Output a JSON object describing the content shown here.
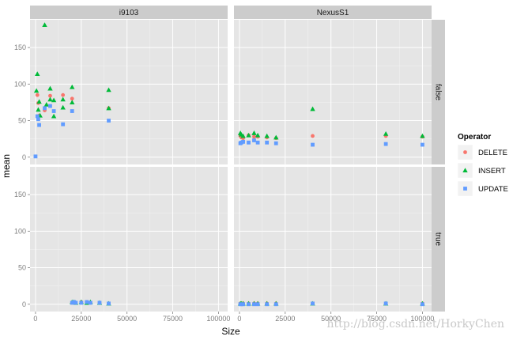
{
  "chart_data": {
    "type": "scatter",
    "title": "",
    "xlabel": "Size",
    "ylabel": "mean",
    "facet_columns": [
      "i9103",
      "NexusS1"
    ],
    "facet_rows": [
      "false",
      "true"
    ],
    "xlim": [
      -3000,
      105000
    ],
    "ylim": [
      -10,
      188
    ],
    "x_ticks": [
      0,
      25000,
      50000,
      75000,
      100000
    ],
    "x_tick_labels": [
      "0",
      "25000",
      "50000",
      "75000",
      "100000"
    ],
    "y_ticks": [
      0,
      50,
      100,
      150
    ],
    "y_tick_labels": [
      "0",
      "50",
      "100",
      "150"
    ],
    "grid": true,
    "legend": {
      "title": "Operator",
      "position": "right",
      "entries": [
        {
          "label": "DELETE",
          "color": "#F8766D",
          "shape": "circle"
        },
        {
          "label": "INSERT",
          "color": "#00BA38",
          "shape": "triangle"
        },
        {
          "label": "UPDATE",
          "color": "#619CFF",
          "shape": "square"
        }
      ]
    },
    "panels": [
      {
        "column": "i9103",
        "row": "false",
        "series": [
          {
            "name": "DELETE",
            "points": [
              [
                1000,
                85
              ],
              [
                1500,
                74
              ],
              [
                2000,
                57
              ],
              [
                5000,
                64
              ],
              [
                8000,
                84
              ],
              [
                15000,
                85
              ],
              [
                20000,
                80
              ],
              [
                40000,
                67
              ]
            ]
          },
          {
            "name": "INSERT",
            "points": [
              [
                500,
                91
              ],
              [
                1000,
                114
              ],
              [
                1500,
                65
              ],
              [
                2000,
                76
              ],
              [
                2500,
                57
              ],
              [
                5000,
                181
              ],
              [
                6000,
                72
              ],
              [
                8000,
                94
              ],
              [
                8000,
                79
              ],
              [
                10000,
                78
              ],
              [
                10000,
                56
              ],
              [
                15000,
                79
              ],
              [
                15000,
                68
              ],
              [
                20000,
                96
              ],
              [
                20000,
                75
              ],
              [
                40000,
                92
              ],
              [
                40000,
                67
              ]
            ]
          },
          {
            "name": "UPDATE",
            "points": [
              [
                0,
                1
              ],
              [
                1000,
                56
              ],
              [
                1500,
                52
              ],
              [
                2000,
                44
              ],
              [
                5000,
                67
              ],
              [
                8000,
                70
              ],
              [
                10000,
                63
              ],
              [
                15000,
                45
              ],
              [
                20000,
                63
              ],
              [
                40000,
                50
              ]
            ]
          }
        ]
      },
      {
        "column": "NexusS1",
        "row": "false",
        "series": [
          {
            "name": "DELETE",
            "points": [
              [
                500,
                29
              ],
              [
                1000,
                27
              ],
              [
                2000,
                26
              ],
              [
                5000,
                30
              ],
              [
                8000,
                28
              ],
              [
                10000,
                28
              ],
              [
                15000,
                27
              ],
              [
                20000,
                26
              ],
              [
                40000,
                29
              ],
              [
                80000,
                29
              ],
              [
                100000,
                28
              ]
            ]
          },
          {
            "name": "INSERT",
            "points": [
              [
                500,
                33
              ],
              [
                1000,
                31
              ],
              [
                2000,
                29
              ],
              [
                5000,
                30
              ],
              [
                8000,
                33
              ],
              [
                10000,
                30
              ],
              [
                15000,
                29
              ],
              [
                20000,
                27
              ],
              [
                40000,
                66
              ],
              [
                80000,
                32
              ],
              [
                100000,
                29
              ]
            ]
          },
          {
            "name": "UPDATE",
            "points": [
              [
                500,
                19
              ],
              [
                1000,
                20
              ],
              [
                2000,
                21
              ],
              [
                5000,
                20
              ],
              [
                8000,
                23
              ],
              [
                10000,
                20
              ],
              [
                15000,
                20
              ],
              [
                20000,
                19
              ],
              [
                40000,
                17
              ],
              [
                80000,
                18
              ],
              [
                100000,
                17
              ]
            ]
          }
        ]
      },
      {
        "column": "i9103",
        "row": "true",
        "series": [
          {
            "name": "DELETE",
            "points": [
              [
                20000,
                2
              ],
              [
                21000,
                3
              ],
              [
                25000,
                3
              ],
              [
                28000,
                3
              ],
              [
                30000,
                2
              ],
              [
                35000,
                2
              ],
              [
                40000,
                1
              ]
            ]
          },
          {
            "name": "INSERT",
            "points": [
              [
                20000,
                3
              ],
              [
                21000,
                3
              ],
              [
                22000,
                2
              ],
              [
                25000,
                3
              ],
              [
                28000,
                2
              ],
              [
                30000,
                3
              ],
              [
                35000,
                2
              ],
              [
                40000,
                1
              ]
            ]
          },
          {
            "name": "UPDATE",
            "points": [
              [
                20000,
                2
              ],
              [
                21000,
                3
              ],
              [
                22000,
                2
              ],
              [
                25000,
                2
              ],
              [
                28000,
                3
              ],
              [
                30000,
                2
              ],
              [
                35000,
                2
              ],
              [
                40000,
                1
              ]
            ]
          }
        ]
      },
      {
        "column": "NexusS1",
        "row": "true",
        "series": [
          {
            "name": "DELETE",
            "points": [
              [
                500,
                1
              ],
              [
                1000,
                1
              ],
              [
                2000,
                1
              ],
              [
                5000,
                1
              ],
              [
                8000,
                1
              ],
              [
                10000,
                1
              ],
              [
                15000,
                1
              ],
              [
                20000,
                1
              ],
              [
                40000,
                1
              ],
              [
                80000,
                1
              ],
              [
                100000,
                1
              ]
            ]
          },
          {
            "name": "INSERT",
            "points": [
              [
                500,
                1
              ],
              [
                1000,
                1
              ],
              [
                2000,
                1
              ],
              [
                5000,
                1
              ],
              [
                8000,
                1
              ],
              [
                10000,
                1
              ],
              [
                15000,
                1
              ],
              [
                20000,
                1
              ],
              [
                40000,
                1
              ],
              [
                80000,
                1
              ],
              [
                100000,
                1
              ]
            ]
          },
          {
            "name": "UPDATE",
            "points": [
              [
                500,
                0
              ],
              [
                1000,
                0
              ],
              [
                2000,
                0
              ],
              [
                5000,
                0
              ],
              [
                8000,
                0
              ],
              [
                10000,
                0
              ],
              [
                15000,
                0
              ],
              [
                20000,
                0
              ],
              [
                40000,
                1
              ],
              [
                80000,
                1
              ],
              [
                100000,
                0
              ]
            ]
          }
        ]
      }
    ]
  },
  "watermark": "http://blog.csdn.net/HorkyChen"
}
